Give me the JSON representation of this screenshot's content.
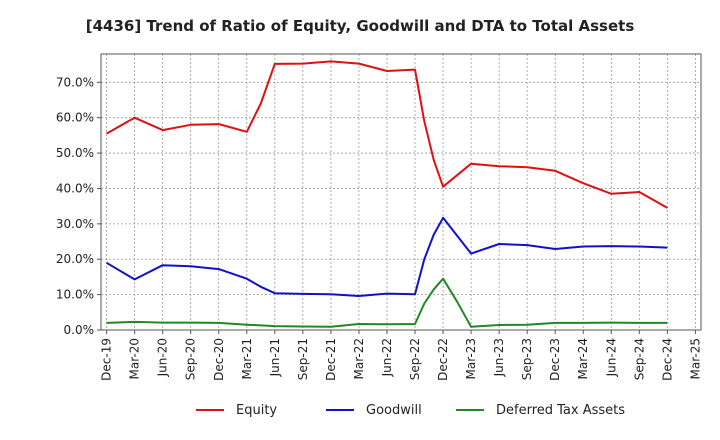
{
  "chart_data": {
    "type": "line",
    "title": "[4436]  Trend of Ratio of Equity, Goodwill and DTA to Total Assets",
    "xlabel": "",
    "ylabel": "",
    "ylim": [
      0,
      78
    ],
    "grid": true,
    "legend_placement": "bottom",
    "x_ticks": [
      "Dec-19",
      "Mar-20",
      "Jun-20",
      "Sep-20",
      "Dec-20",
      "Mar-21",
      "Jun-21",
      "Sep-21",
      "Dec-21",
      "Mar-22",
      "Jun-22",
      "Sep-22",
      "Dec-22",
      "Mar-23",
      "Jun-23",
      "Sep-23",
      "Dec-23",
      "Mar-24",
      "Jun-24",
      "Sep-24",
      "Dec-24",
      "Mar-25"
    ],
    "y_ticks": [
      {
        "value": 0,
        "label": "0.0%"
      },
      {
        "value": 10,
        "label": "10.0%"
      },
      {
        "value": 20,
        "label": "20.0%"
      },
      {
        "value": 30,
        "label": "30.0%"
      },
      {
        "value": 40,
        "label": "40.0%"
      },
      {
        "value": 50,
        "label": "50.0%"
      },
      {
        "value": 60,
        "label": "60.0%"
      },
      {
        "value": 70,
        "label": "70.0%"
      }
    ],
    "series": [
      {
        "name": "Equity",
        "color": "#dd1111",
        "points": [
          [
            0,
            55.5
          ],
          [
            1,
            60.0
          ],
          [
            2,
            56.5
          ],
          [
            3,
            58.0
          ],
          [
            4,
            58.2
          ],
          [
            5,
            56.0
          ],
          [
            5.5,
            64.0
          ],
          [
            6,
            75.2
          ],
          [
            7,
            75.3
          ],
          [
            8,
            75.9
          ],
          [
            9,
            75.3
          ],
          [
            10,
            73.2
          ],
          [
            11,
            73.6
          ],
          [
            11.33,
            59.0
          ],
          [
            11.67,
            48.0
          ],
          [
            12,
            40.5
          ],
          [
            13,
            47.0
          ],
          [
            14,
            46.3
          ],
          [
            15,
            46.0
          ],
          [
            16,
            45.0
          ],
          [
            17,
            41.5
          ],
          [
            18,
            38.5
          ],
          [
            19,
            39.0
          ],
          [
            20,
            34.5
          ]
        ]
      },
      {
        "name": "Goodwill",
        "color": "#1111cc",
        "points": [
          [
            0,
            19.0
          ],
          [
            1,
            14.3
          ],
          [
            2,
            18.3
          ],
          [
            3,
            18.0
          ],
          [
            4,
            17.2
          ],
          [
            5,
            14.5
          ],
          [
            5.5,
            12.2
          ],
          [
            6,
            10.4
          ],
          [
            7,
            10.2
          ],
          [
            8,
            10.1
          ],
          [
            9,
            9.6
          ],
          [
            10,
            10.3
          ],
          [
            11,
            10.1
          ],
          [
            11.33,
            20.0
          ],
          [
            11.67,
            27.0
          ],
          [
            12,
            31.7
          ],
          [
            13,
            21.6
          ],
          [
            14,
            24.3
          ],
          [
            15,
            24.0
          ],
          [
            16,
            22.9
          ],
          [
            17,
            23.6
          ],
          [
            18,
            23.7
          ],
          [
            19,
            23.6
          ],
          [
            20,
            23.3
          ]
        ]
      },
      {
        "name": "Deferred Tax Assets",
        "color": "#228822",
        "points": [
          [
            0,
            2.0
          ],
          [
            1,
            2.3
          ],
          [
            2,
            2.1
          ],
          [
            3,
            2.1
          ],
          [
            4,
            2.0
          ],
          [
            5,
            1.5
          ],
          [
            6,
            1.1
          ],
          [
            7,
            1.0
          ],
          [
            8,
            0.9
          ],
          [
            9,
            1.7
          ],
          [
            10,
            1.6
          ],
          [
            11,
            1.7
          ],
          [
            11.33,
            7.5
          ],
          [
            11.67,
            11.5
          ],
          [
            12,
            14.5
          ],
          [
            12.5,
            8.0
          ],
          [
            13,
            0.9
          ],
          [
            14,
            1.4
          ],
          [
            15,
            1.5
          ],
          [
            16,
            2.0
          ],
          [
            17,
            2.0
          ],
          [
            18,
            2.1
          ],
          [
            19,
            2.0
          ],
          [
            20,
            2.0
          ]
        ]
      }
    ]
  }
}
